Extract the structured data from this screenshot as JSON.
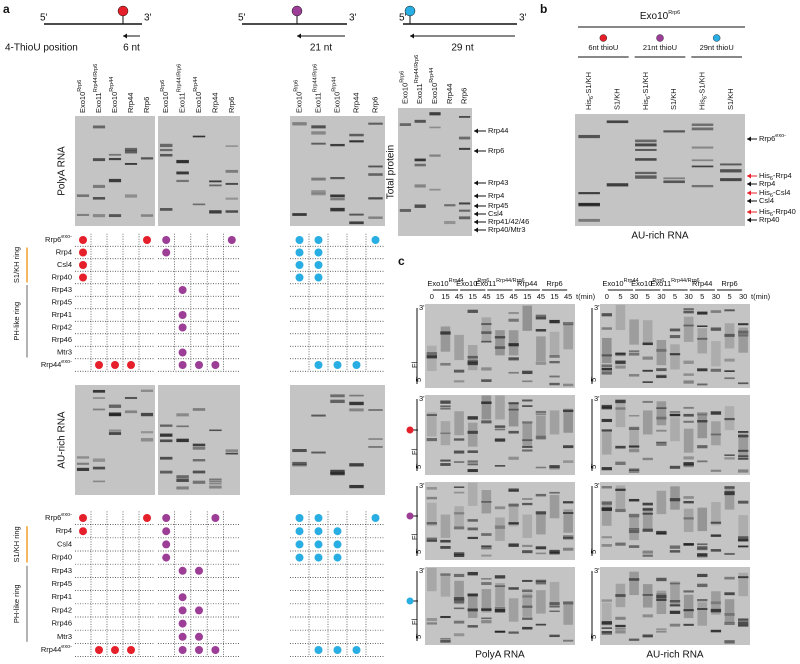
{
  "panels": [
    "a",
    "b",
    "c"
  ],
  "a": {
    "five_prime": "5'",
    "three_prime": "3'",
    "position_label": "4-ThioU position",
    "schematics": [
      {
        "label": "6 nt",
        "color": "#e5202a"
      },
      {
        "label": "21 nt",
        "color": "#9c3d96"
      },
      {
        "label": "29 nt",
        "color": "#29aee3"
      }
    ],
    "lanes": [
      {
        "t": "Exo10",
        "sup": "Rrp6"
      },
      {
        "t": "Exo11",
        "sup": "Rrp44/Rrp6"
      },
      {
        "t": "Exo10",
        "sup": "Rrp44"
      },
      {
        "t": "Rrp44"
      },
      {
        "t": "Rrp6"
      }
    ],
    "total_label": "Total protein",
    "total_bands": [
      "Rrp44",
      "Rrp6",
      "Rrp43",
      "Rrp4",
      "Rrp45",
      "Csl4",
      "Rrp41/42/46",
      "Rrp40/Mtr3"
    ],
    "rows": [
      {
        "t": "Rrp6",
        "sup": "exo-"
      },
      {
        "t": "Rrp4"
      },
      {
        "t": "Csl4"
      },
      {
        "t": "Rrp40"
      },
      {
        "t": "Rrp43"
      },
      {
        "t": "Rrp45"
      },
      {
        "t": "Rrp41"
      },
      {
        "t": "Rrp42"
      },
      {
        "t": "Rrp46"
      },
      {
        "t": "Mtr3"
      },
      {
        "t": "Rrp44",
        "sup": "exo-"
      }
    ],
    "rings": [
      {
        "label": "S1/KH ring",
        "color": "#f0a030"
      },
      {
        "label": "PH-like ring",
        "color": "#999999"
      }
    ],
    "blocks": [
      {
        "label": "PolyA RNA",
        "dots": [
          [
            [
              1,
              0,
              0,
              0,
              1
            ],
            [
              1,
              0,
              0,
              0,
              0
            ],
            [
              1,
              0,
              0,
              0,
              0
            ],
            [
              1,
              0,
              0,
              0,
              0
            ],
            [
              0,
              0,
              0,
              0,
              0
            ],
            [
              0,
              0,
              0,
              0,
              0
            ],
            [
              0,
              0,
              0,
              0,
              0
            ],
            [
              0,
              0,
              0,
              0,
              0
            ],
            [
              0,
              0,
              0,
              0,
              0
            ],
            [
              0,
              0,
              0,
              0,
              0
            ],
            [
              0,
              1,
              1,
              1,
              0
            ]
          ],
          [
            [
              1,
              0,
              0,
              0,
              1
            ],
            [
              1,
              0,
              0,
              0,
              0
            ],
            [
              0,
              0,
              0,
              0,
              0
            ],
            [
              0,
              0,
              0,
              0,
              0
            ],
            [
              0,
              1,
              0,
              0,
              0
            ],
            [
              0,
              0,
              0,
              0,
              0
            ],
            [
              0,
              1,
              0,
              0,
              0
            ],
            [
              0,
              1,
              0,
              0,
              0
            ],
            [
              0,
              0,
              0,
              0,
              0
            ],
            [
              0,
              1,
              0,
              0,
              0
            ],
            [
              0,
              1,
              1,
              1,
              0
            ]
          ],
          [
            [
              1,
              1,
              0,
              0,
              1
            ],
            [
              1,
              1,
              0,
              0,
              0
            ],
            [
              1,
              1,
              0,
              0,
              0
            ],
            [
              1,
              1,
              0,
              0,
              0
            ],
            [
              0,
              0,
              0,
              0,
              0
            ],
            [
              0,
              0,
              0,
              0,
              0
            ],
            [
              0,
              0,
              0,
              0,
              0
            ],
            [
              0,
              0,
              0,
              0,
              0
            ],
            [
              0,
              0,
              0,
              0,
              0
            ],
            [
              0,
              0,
              0,
              0,
              0
            ],
            [
              0,
              1,
              1,
              1,
              0
            ]
          ]
        ]
      },
      {
        "label": "AU-rich RNA",
        "dots": [
          [
            [
              1,
              0,
              0,
              0,
              1
            ],
            [
              1,
              0,
              0,
              0,
              0
            ],
            [
              0,
              0,
              0,
              0,
              0
            ],
            [
              0,
              0,
              0,
              0,
              0
            ],
            [
              0,
              0,
              0,
              0,
              0
            ],
            [
              0,
              0,
              0,
              0,
              0
            ],
            [
              0,
              0,
              0,
              0,
              0
            ],
            [
              0,
              0,
              0,
              0,
              0
            ],
            [
              0,
              0,
              0,
              0,
              0
            ],
            [
              0,
              0,
              0,
              0,
              0
            ],
            [
              0,
              1,
              1,
              1,
              0
            ]
          ],
          [
            [
              1,
              0,
              0,
              1,
              0
            ],
            [
              1,
              0,
              0,
              0,
              0
            ],
            [
              1,
              0,
              0,
              0,
              0
            ],
            [
              1,
              0,
              0,
              0,
              0
            ],
            [
              0,
              1,
              1,
              0,
              0
            ],
            [
              0,
              0,
              0,
              0,
              0
            ],
            [
              0,
              1,
              0,
              0,
              0
            ],
            [
              0,
              1,
              1,
              0,
              0
            ],
            [
              0,
              1,
              0,
              0,
              0
            ],
            [
              0,
              1,
              1,
              0,
              0
            ],
            [
              0,
              1,
              1,
              1,
              0
            ]
          ],
          [
            [
              1,
              1,
              0,
              0,
              1
            ],
            [
              1,
              1,
              1,
              0,
              0
            ],
            [
              1,
              1,
              1,
              0,
              0
            ],
            [
              1,
              1,
              1,
              0,
              0
            ],
            [
              0,
              0,
              0,
              0,
              0
            ],
            [
              0,
              0,
              0,
              0,
              0
            ],
            [
              0,
              0,
              0,
              0,
              0
            ],
            [
              0,
              0,
              0,
              0,
              0
            ],
            [
              0,
              0,
              0,
              0,
              0
            ],
            [
              0,
              0,
              0,
              0,
              0
            ],
            [
              0,
              1,
              1,
              1,
              0
            ]
          ]
        ]
      }
    ]
  },
  "b": {
    "title": {
      "t": "Exo10",
      "sup": "Rrp6"
    },
    "groups": [
      "6nt thioU",
      "21nt thioU",
      "29nt thioU"
    ],
    "lanes": [
      {
        "t": "His",
        "sub": "6",
        "rest": "-S1/KH"
      },
      {
        "t": "S1/KH"
      },
      {
        "t": "His",
        "sub": "6",
        "rest": "-S1/KH"
      },
      {
        "t": "S1/KH"
      },
      {
        "t": "His",
        "sub": "6",
        "rest": "-S1/KH"
      },
      {
        "t": "S1/KH"
      }
    ],
    "bands": [
      {
        "t": "Rrp6",
        "sup": "exo-"
      },
      {
        "t": "His",
        "sub": "6",
        "rest": "-Rrp4",
        "color": "#e5202a"
      },
      {
        "t": "Rrp4"
      },
      {
        "t": "His",
        "sub": "6",
        "rest": "-Csl4",
        "color": "#e5202a"
      },
      {
        "t": "Csl4"
      },
      {
        "t": "His",
        "sub": "6",
        "rest": "-Rrp40",
        "color": "#e5202a"
      },
      {
        "t": "Rrp40"
      }
    ],
    "label": "AU-rich RNA"
  },
  "c": {
    "constructs": [
      {
        "t": "Exo10",
        "sup": "Rrp44"
      },
      {
        "t": "Exo10",
        "sup": "Rrp6"
      },
      {
        "t": "Exo11",
        "sup": "Rrp44/Rrp6"
      },
      {
        "t": "Rrp44"
      },
      {
        "t": "Rrp6"
      }
    ],
    "time_unit": "t(min)",
    "times": [
      [
        "0",
        "15",
        "45",
        "15",
        "45",
        "15",
        "45",
        "15",
        "45",
        "15",
        "45"
      ],
      [
        "0",
        "5",
        "30",
        "5",
        "30",
        "5",
        "30",
        "5",
        "30",
        "5",
        "30"
      ]
    ],
    "labels": [
      "PolyA RNA",
      "AU-rich RNA"
    ],
    "fl": "Fl",
    "fl_color": "#b5c020"
  }
}
